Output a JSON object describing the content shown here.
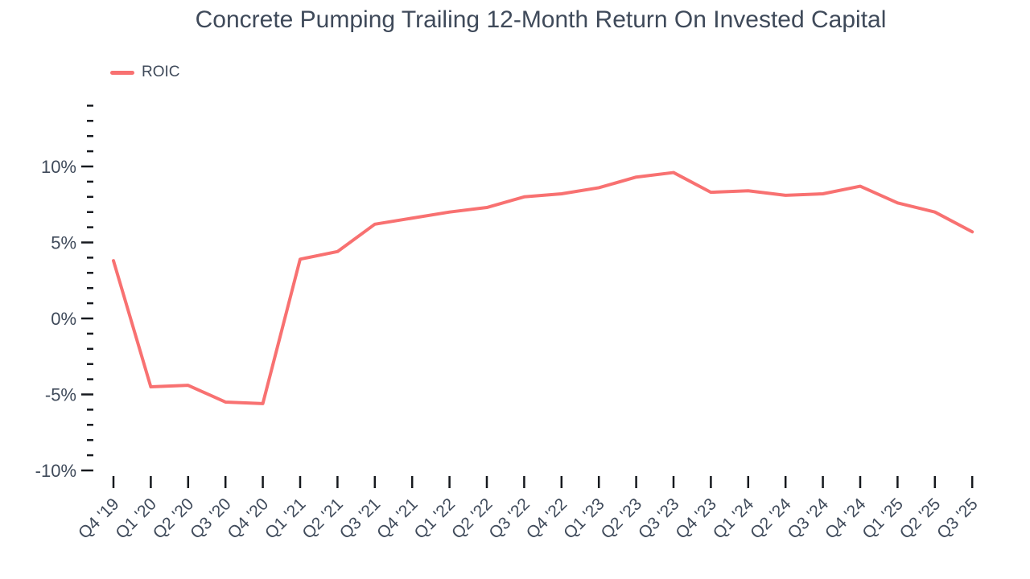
{
  "title": "Concrete Pumping Trailing 12-Month Return On Invested Capital",
  "colors": {
    "line": "#F87171",
    "text": "#3F4A5A",
    "tick": "#16191E",
    "background": "#FFFFFF"
  },
  "chart_data": {
    "type": "line",
    "title": "Concrete Pumping Trailing 12-Month Return On Invested Capital",
    "xlabel": "",
    "ylabel": "",
    "grid": false,
    "legend": {
      "position": "top-left",
      "entries": [
        {
          "label": "ROIC",
          "color": "#F87171"
        }
      ]
    },
    "x": [
      "Q4 '19",
      "Q1 '20",
      "Q2 '20",
      "Q3 '20",
      "Q4 '20",
      "Q1 '21",
      "Q2 '21",
      "Q3 '21",
      "Q4 '21",
      "Q1 '22",
      "Q2 '22",
      "Q3 '22",
      "Q4 '22",
      "Q1 '23",
      "Q2 '23",
      "Q3 '23",
      "Q4 '23",
      "Q1 '24",
      "Q2 '24",
      "Q3 '24",
      "Q4 '24",
      "Q1 '25",
      "Q2 '25",
      "Q3 '25"
    ],
    "series": [
      {
        "name": "ROIC",
        "color": "#F87171",
        "unit": "%",
        "values": [
          3.8,
          -4.5,
          -4.4,
          -5.5,
          -5.6,
          3.9,
          4.4,
          6.2,
          6.6,
          7.0,
          7.3,
          8.0,
          8.2,
          8.6,
          9.3,
          9.6,
          8.3,
          8.4,
          8.1,
          8.2,
          8.7,
          7.6,
          7.0,
          5.7
        ]
      }
    ],
    "ylim": [
      -10,
      14
    ],
    "y_minor_tick_step": 1,
    "y_major_ticks": [
      {
        "value": 10,
        "label": "10%"
      },
      {
        "value": 5,
        "label": "5%"
      },
      {
        "value": 0,
        "label": "0%"
      },
      {
        "value": -5,
        "label": "-5%"
      },
      {
        "value": -10,
        "label": "-10%"
      }
    ]
  }
}
